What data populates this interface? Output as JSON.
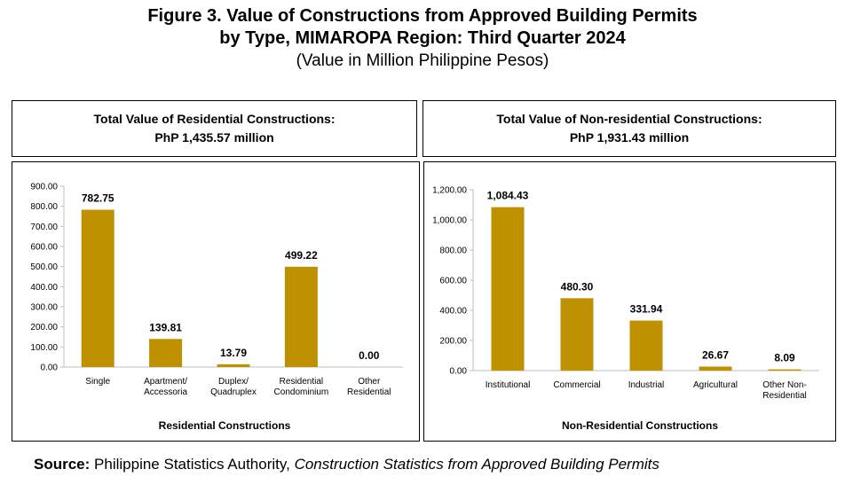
{
  "figure": {
    "title_line1": "Figure 3. Value of Constructions from Approved Building Permits",
    "title_line2": "by Type, MIMAROPA Region: Third Quarter 2024",
    "subtitle": "(Value in Million Philippine Pesos)"
  },
  "left_header": {
    "line1": "Total Value of Residential Constructions:",
    "line2": "PhP 1,435.57 million"
  },
  "right_header": {
    "line1": "Total Value of Non-residential Constructions:",
    "line2": "PhP 1,931.43 million"
  },
  "source": {
    "label": "Source:",
    "agency": "Philippine Statistics Authority,",
    "title": "Construction Statistics from Approved Building Permits"
  },
  "colors": {
    "bar": "#BF9000",
    "axis": "#BFBFBF",
    "text": "#000000"
  },
  "chart_data": [
    {
      "type": "bar",
      "xlabel": "Residential Constructions",
      "ylabel": "",
      "ylim": [
        0,
        900
      ],
      "yticks": [
        0,
        100,
        200,
        300,
        400,
        500,
        600,
        700,
        800,
        900
      ],
      "ytick_labels": [
        "0.00",
        "100.00",
        "200.00",
        "300.00",
        "400.00",
        "500.00",
        "600.00",
        "700.00",
        "800.00",
        "900.00"
      ],
      "grid": false,
      "categories": [
        [
          "Single"
        ],
        [
          "Apartment/",
          "Accessoria"
        ],
        [
          "Duplex/",
          "Quadruplex"
        ],
        [
          "Residential",
          "Condominium"
        ],
        [
          "Other",
          "Residential"
        ]
      ],
      "values": [
        782.75,
        139.81,
        13.79,
        499.22,
        0.0
      ],
      "value_labels": [
        "782.75",
        "139.81",
        "13.79",
        "499.22",
        "0.00"
      ]
    },
    {
      "type": "bar",
      "xlabel": "Non-Residential Constructions",
      "ylabel": "",
      "ylim": [
        0,
        1200
      ],
      "yticks": [
        0,
        200,
        400,
        600,
        800,
        1000,
        1200
      ],
      "ytick_labels": [
        "0.00",
        "200.00",
        "400.00",
        "600.00",
        "800.00",
        "1,000.00",
        "1,200.00"
      ],
      "grid": false,
      "categories": [
        [
          "Institutional"
        ],
        [
          "Commercial"
        ],
        [
          "Industrial"
        ],
        [
          "Agricultural"
        ],
        [
          "Other Non-",
          "Residential"
        ]
      ],
      "values": [
        1084.43,
        480.3,
        331.94,
        26.67,
        8.09
      ],
      "value_labels": [
        "1,084.43",
        "480.30",
        "331.94",
        "26.67",
        "8.09"
      ]
    }
  ]
}
